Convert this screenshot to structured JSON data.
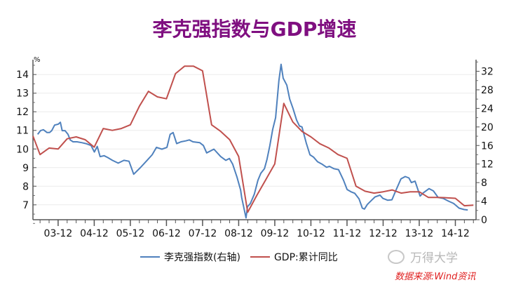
{
  "chart_data": {
    "type": "line",
    "title": "李克强指数与GDP增速",
    "left_axis": {
      "unit_label": "%",
      "range": [
        6.2,
        14.8
      ],
      "ticks": [
        7,
        8,
        9,
        10,
        11,
        12,
        13,
        14
      ]
    },
    "right_axis": {
      "range": [
        0,
        34.5
      ],
      "ticks": [
        0,
        4,
        8,
        12,
        16,
        20,
        24,
        28,
        32
      ]
    },
    "x_axis": {
      "range": [
        2003.22,
        2015.49
      ],
      "tick_labels": [
        "03-12",
        "04-12",
        "05-12",
        "06-12",
        "07-12",
        "08-12",
        "09-12",
        "10-12",
        "11-12",
        "12-12",
        "13-12",
        "14-12"
      ],
      "tick_values": [
        2003.917,
        2004.917,
        2005.917,
        2006.917,
        2007.917,
        2008.917,
        2009.917,
        2010.917,
        2011.917,
        2012.917,
        2013.917,
        2014.917
      ]
    },
    "grid": true,
    "legend_position": "bottom",
    "series": [
      {
        "name": "李克强指数(右轴)",
        "axis": "right",
        "color": "#4f81bd",
        "x": [
          2003.35,
          2003.43,
          2003.51,
          2003.61,
          2003.68,
          2003.74,
          2003.82,
          2003.92,
          2003.98,
          2004.03,
          2004.11,
          2004.19,
          2004.25,
          2004.33,
          2004.44,
          2004.58,
          2004.69,
          2004.83,
          2004.92,
          2005.0,
          2005.08,
          2005.19,
          2005.29,
          2005.42,
          2005.58,
          2005.74,
          2005.88,
          2006.01,
          2006.19,
          2006.38,
          2006.52,
          2006.64,
          2006.79,
          2006.93,
          2007.02,
          2007.1,
          2007.2,
          2007.32,
          2007.45,
          2007.55,
          2007.65,
          2007.84,
          2007.94,
          2008.03,
          2008.23,
          2008.42,
          2008.56,
          2008.66,
          2008.75,
          2008.87,
          2008.97,
          2009.0,
          2009.12,
          2009.16,
          2009.24,
          2009.35,
          2009.45,
          2009.53,
          2009.63,
          2009.7,
          2009.78,
          2009.86,
          2009.94,
          2010.03,
          2010.09,
          2010.15,
          2010.25,
          2010.33,
          2010.42,
          2010.52,
          2010.6,
          2010.67,
          2010.79,
          2010.89,
          2010.99,
          2011.1,
          2011.22,
          2011.35,
          2011.43,
          2011.55,
          2011.68,
          2011.82,
          2011.92,
          2012.03,
          2012.13,
          2012.25,
          2012.34,
          2012.4,
          2012.48,
          2012.6,
          2012.69,
          2012.83,
          2012.91,
          2013.04,
          2013.16,
          2013.28,
          2013.41,
          2013.53,
          2013.63,
          2013.7,
          2013.8,
          2013.94,
          2014.03,
          2014.19,
          2014.31,
          2014.44,
          2014.58,
          2014.73,
          2014.87,
          2015.02,
          2015.16,
          2015.26
        ],
        "values": [
          18.4,
          19.2,
          19.4,
          18.8,
          18.8,
          19.2,
          20.4,
          20.6,
          21.0,
          19.2,
          19.2,
          18.4,
          17.2,
          16.8,
          16.8,
          16.6,
          16.4,
          16.0,
          14.6,
          15.8,
          13.6,
          13.8,
          13.4,
          12.8,
          12.2,
          12.8,
          12.6,
          9.8,
          11.2,
          12.8,
          14.0,
          15.6,
          15.2,
          15.6,
          18.4,
          18.8,
          16.4,
          16.8,
          17.0,
          17.2,
          16.8,
          16.6,
          16.0,
          14.4,
          15.2,
          13.6,
          12.8,
          13.2,
          12.0,
          9.2,
          6.4,
          4.8,
          0.4,
          2.8,
          3.5,
          5.5,
          8.5,
          10.0,
          11.0,
          13.0,
          16.0,
          19.5,
          22.0,
          30.0,
          33.5,
          30.5,
          29.0,
          26.0,
          24.0,
          21.5,
          20.2,
          20.0,
          16.5,
          14.0,
          13.5,
          12.5,
          12.0,
          11.3,
          11.5,
          11.0,
          10.8,
          8.5,
          6.5,
          6.0,
          5.7,
          4.5,
          2.5,
          2.3,
          3.3,
          4.2,
          4.9,
          5.3,
          4.6,
          4.2,
          4.3,
          6.5,
          8.8,
          9.3,
          9.0,
          8.0,
          8.3,
          5.1,
          5.8,
          6.7,
          6.2,
          4.8,
          4.6,
          4.0,
          3.5,
          2.5,
          2.2,
          2.1
        ]
      },
      {
        "name": "GDP:累计同比",
        "axis": "left",
        "color": "#c0504d",
        "x": [
          2003.22,
          2003.417,
          2003.667,
          2003.917,
          2004.167,
          2004.417,
          2004.667,
          2004.917,
          2005.167,
          2005.417,
          2005.667,
          2005.917,
          2006.167,
          2006.417,
          2006.667,
          2006.917,
          2007.167,
          2007.417,
          2007.667,
          2007.917,
          2008.167,
          2008.417,
          2008.667,
          2008.917,
          2009.167,
          2009.417,
          2009.667,
          2009.917,
          2010.167,
          2010.417,
          2010.667,
          2010.917,
          2011.167,
          2011.417,
          2011.667,
          2011.917,
          2012.167,
          2012.417,
          2012.667,
          2012.917,
          2013.167,
          2013.417,
          2013.667,
          2013.917,
          2014.167,
          2014.417,
          2014.667,
          2014.917,
          2015.167,
          2015.417
        ],
        "values": [
          10.7,
          9.7,
          10.05,
          10.0,
          10.55,
          10.65,
          10.5,
          10.1,
          11.1,
          11.0,
          11.1,
          11.3,
          12.3,
          13.1,
          12.8,
          12.7,
          14.05,
          14.45,
          14.45,
          14.2,
          11.3,
          10.95,
          10.5,
          9.6,
          6.6,
          7.5,
          8.35,
          9.2,
          12.45,
          11.45,
          10.95,
          10.65,
          10.28,
          10.05,
          9.7,
          9.5,
          8.0,
          7.73,
          7.63,
          7.7,
          7.8,
          7.63,
          7.7,
          7.7,
          7.4,
          7.4,
          7.38,
          7.35,
          6.95,
          6.98
        ]
      }
    ]
  },
  "legend": {
    "blue_label": "李克强指数(右轴)",
    "red_label": "GDP:累计同比"
  },
  "watermark": "万得大学",
  "source": "数据来源:Wind资讯"
}
